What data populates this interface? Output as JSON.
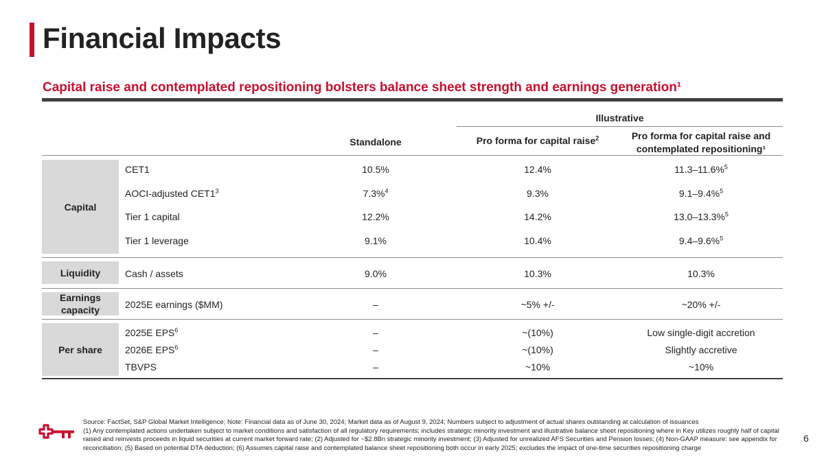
{
  "title": "Financial Impacts",
  "subtitle": "Capital raise and contemplated repositioning bolsters balance sheet strength and earnings generation¹",
  "table": {
    "group_header": "Illustrative",
    "headers": {
      "standalone": "Standalone",
      "pf_capital": "Pro forma for capital raise",
      "pf_capital_sup": "2",
      "pf_repositioning": "Pro forma for capital raise and contemplated repositioning¹"
    },
    "sections": {
      "capital": {
        "category": "Capital",
        "rows": [
          {
            "label": "CET1",
            "label_sup": "",
            "standalone": "10.5%",
            "standalone_sup": "",
            "pf_capital": "12.4%",
            "pf_repositioning": "11.3–11.6%",
            "pf_repositioning_sup": "5"
          },
          {
            "label": "AOCI-adjusted CET1",
            "label_sup": "3",
            "standalone": "7.3%",
            "standalone_sup": "4",
            "pf_capital": "9.3%",
            "pf_repositioning": "9.1–9.4%",
            "pf_repositioning_sup": "5"
          },
          {
            "label": "Tier 1 capital",
            "label_sup": "",
            "standalone": "12.2%",
            "standalone_sup": "",
            "pf_capital": "14.2%",
            "pf_repositioning": "13.0–13.3%",
            "pf_repositioning_sup": "5"
          },
          {
            "label": "Tier 1 leverage",
            "label_sup": "",
            "standalone": "9.1%",
            "standalone_sup": "",
            "pf_capital": "10.4%",
            "pf_repositioning": "9.4–9.6%",
            "pf_repositioning_sup": "5"
          }
        ]
      },
      "liquidity": {
        "category": "Liquidity",
        "rows": [
          {
            "label": "Cash / assets",
            "standalone": "9.0%",
            "pf_capital": "10.3%",
            "pf_repositioning": "10.3%"
          }
        ]
      },
      "earnings": {
        "category": "Earnings capacity",
        "rows": [
          {
            "label": "2025E earnings ($MM)",
            "standalone": "–",
            "pf_capital": "~5% +/-",
            "pf_repositioning": "~20% +/-"
          }
        ]
      },
      "per_share": {
        "category": "Per share",
        "rows": [
          {
            "label": "2025E EPS",
            "label_sup": "6",
            "standalone": "–",
            "pf_capital": "~(10%)",
            "pf_repositioning": "Low single-digit accretion"
          },
          {
            "label": "2026E EPS",
            "label_sup": "6",
            "standalone": "–",
            "pf_capital": "~(10%)",
            "pf_repositioning": "Slightly accretive"
          },
          {
            "label": "TBVPS",
            "label_sup": "",
            "standalone": "–",
            "pf_capital": "~10%",
            "pf_repositioning": "~10%"
          }
        ]
      }
    }
  },
  "footnotes": {
    "source": "Source: FactSet, S&P Global Market Intelligence; Note: Financial data as of June 30, 2024; Market data as of August 9, 2024; Numbers subject to adjustment of actual shares outstanding at calculation of issuances",
    "notes": "(1) Any contemplated actions undertaken subject to market conditions and satisfaction of all regulatory requirements; includes strategic minority investment and illustrative balance sheet repositioning where in Key utilizes roughly half of capital raised and reinvests proceeds in liquid securities at current market forward rate; (2) Adjusted for ~$2.8Bn strategic minority investment; (3) Adjusted for unrealized AFS Securities and Pension losses; (4) Non-GAAP measure: see appendix for reconciliation; (5) Based on potential DTA deduction; (6) Assumes capital raise and contemplated balance sheet repositioning both occur in early 2025; excludes the impact of one-time securities repositioning charge"
  },
  "page_number": "6",
  "colors": {
    "accent": "#c8102e",
    "category_bg": "#d9d9d9",
    "rule_dark": "#404040"
  }
}
